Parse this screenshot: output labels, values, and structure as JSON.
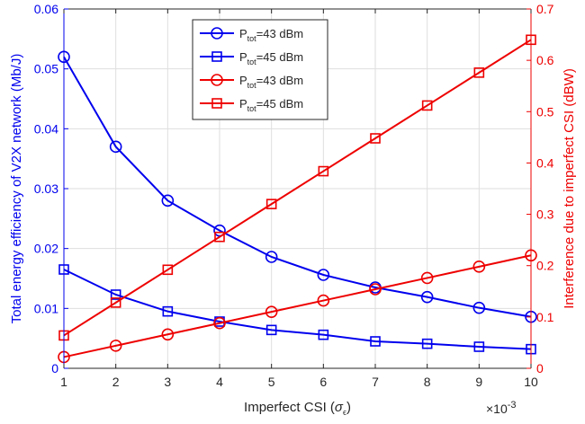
{
  "chart_data": {
    "type": "line",
    "x": [
      1,
      2,
      3,
      4,
      5,
      6,
      7,
      8,
      9,
      10
    ],
    "xlabel": {
      "main": "Imperfect CSI (",
      "symbol": "σ",
      "sub": "ϵ",
      "close": ")"
    },
    "xlim": [
      1,
      10
    ],
    "x_ticks": [
      "1",
      "2",
      "3",
      "4",
      "5",
      "6",
      "7",
      "8",
      "9",
      "10"
    ],
    "x_multiplier": {
      "base": "×10",
      "exp": "-3"
    },
    "ylabel_left": "Total energy efficiency of V2X network (Mb/J)",
    "ylim_left": [
      0,
      0.06
    ],
    "y_ticks_left": [
      "0",
      "0.01",
      "0.02",
      "0.03",
      "0.04",
      "0.05",
      "0.06"
    ],
    "ylabel_right": "Interference due to imperfect CSI (dBW)",
    "ylim_right": [
      0,
      0.7
    ],
    "y_ticks_right": [
      "0",
      "0.1",
      "0.2",
      "0.3",
      "0.4",
      "0.5",
      "0.6",
      "0.7"
    ],
    "grid": true,
    "legend_position": "top-center",
    "series": [
      {
        "name": "P_tot=43 dBm",
        "label_main": "P",
        "label_sub": "tot",
        "label_rest": "=43 dBm",
        "axis": "left",
        "marker": "circle",
        "color": "#0000ee",
        "values": [
          0.052,
          0.037,
          0.028,
          0.023,
          0.0186,
          0.0156,
          0.0135,
          0.0119,
          0.0101,
          0.0086
        ]
      },
      {
        "name": "P_tot=45 dBm",
        "label_main": "P",
        "label_sub": "tot",
        "label_rest": "=45 dBm",
        "axis": "left",
        "marker": "square",
        "color": "#0000ee",
        "values": [
          0.0165,
          0.0123,
          0.0095,
          0.0078,
          0.0064,
          0.0056,
          0.0045,
          0.0041,
          0.0036,
          0.0032
        ]
      },
      {
        "name": "P_tot=43 dBm",
        "label_main": "P",
        "label_sub": "tot",
        "label_rest": "=43 dBm",
        "axis": "right",
        "marker": "circle",
        "color": "#ee0000",
        "values": [
          0.022,
          0.044,
          0.066,
          0.088,
          0.11,
          0.132,
          0.154,
          0.176,
          0.198,
          0.22
        ]
      },
      {
        "name": "P_tot=45 dBm",
        "label_main": "P",
        "label_sub": "tot",
        "label_rest": "=45 dBm",
        "axis": "right",
        "marker": "square",
        "color": "#ee0000",
        "values": [
          0.064,
          0.128,
          0.192,
          0.256,
          0.32,
          0.384,
          0.448,
          0.512,
          0.576,
          0.64
        ]
      }
    ],
    "colors": {
      "left_axis": "#0000ee",
      "right_axis": "#ee0000",
      "grid": "#dedede",
      "frame": "#262626"
    }
  }
}
